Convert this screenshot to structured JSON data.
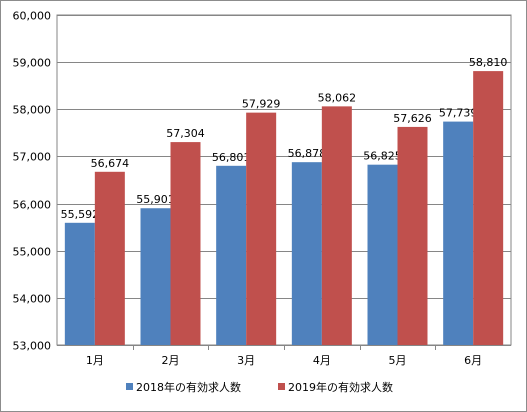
{
  "chart_data": {
    "type": "bar",
    "title": "",
    "xlabel": "",
    "ylabel": "",
    "categories": [
      "1月",
      "2月",
      "3月",
      "4月",
      "5月",
      "6月"
    ],
    "series": [
      {
        "name": "2018年の有効求人数",
        "color": "#4f81bd",
        "values": [
          55592,
          55901,
          56801,
          56878,
          56825,
          57739
        ],
        "labels": [
          "55,592",
          "55,901",
          "56,801",
          "56,878",
          "56,825",
          "57,739"
        ]
      },
      {
        "name": "2019年の有効求人数",
        "color": "#c0504d",
        "values": [
          56674,
          57304,
          57929,
          58062,
          57626,
          58810
        ],
        "labels": [
          "56,674",
          "57,304",
          "57,929",
          "58,062",
          "57,626",
          "58,810"
        ]
      }
    ],
    "ylim": [
      53000,
      60000
    ],
    "yticks": [
      53000,
      54000,
      55000,
      56000,
      57000,
      58000,
      59000,
      60000
    ],
    "ytick_labels": [
      "53,000",
      "54,000",
      "55,000",
      "56,000",
      "57,000",
      "58,000",
      "59,000",
      "60,000"
    ],
    "grid": true,
    "legend_position": "bottom"
  }
}
